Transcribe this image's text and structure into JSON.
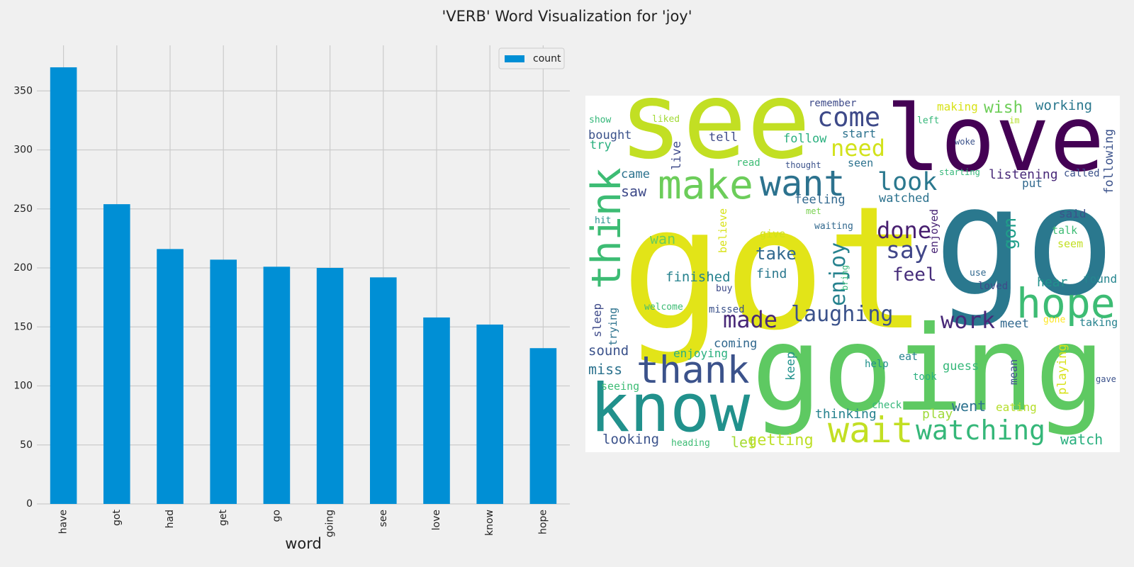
{
  "title": "'VERB' Word Visualization for 'joy'",
  "chart_data": [
    {
      "type": "bar",
      "x_label": "word",
      "categories": [
        "have",
        "got",
        "had",
        "get",
        "go",
        "going",
        "see",
        "love",
        "know",
        "hope"
      ],
      "series": [
        {
          "name": "count",
          "color": "#008fd5",
          "values": [
            370,
            254,
            216,
            207,
            201,
            200,
            192,
            158,
            152,
            132
          ]
        }
      ],
      "ylim": [
        0,
        388.6
      ],
      "yticks": [
        0,
        50,
        100,
        150,
        200,
        250,
        300,
        350
      ],
      "grid": true,
      "legend": "upper right"
    },
    {
      "type": "wordcloud",
      "background": "#ffffff",
      "words": [
        {
          "text": "go",
          "color": "#2a788e"
        },
        {
          "text": "got",
          "color": "#e2e418"
        },
        {
          "text": "going",
          "color": "#5ec962"
        },
        {
          "text": "see",
          "color": "#c2df23"
        },
        {
          "text": "love",
          "color": "#440154"
        },
        {
          "text": "know",
          "color": "#21918c"
        },
        {
          "text": "thank",
          "color": "#3b528b"
        },
        {
          "text": "wait",
          "color": "#c2df23"
        },
        {
          "text": "watching",
          "color": "#35b779"
        },
        {
          "text": "hope",
          "color": "#3dbc74"
        },
        {
          "text": "think",
          "color": "#3dbc74"
        },
        {
          "text": "make",
          "color": "#6ccd5a"
        },
        {
          "text": "want",
          "color": "#2c728e"
        },
        {
          "text": "come",
          "color": "#3e4a89"
        },
        {
          "text": "need",
          "color": "#d2e21b"
        },
        {
          "text": "look",
          "color": "#2a788e"
        },
        {
          "text": "done",
          "color": "#481f70"
        },
        {
          "text": "say",
          "color": "#404688"
        },
        {
          "text": "feel",
          "color": "#472d7b"
        },
        {
          "text": "laughing",
          "color": "#3b528b"
        },
        {
          "text": "work",
          "color": "#482878"
        },
        {
          "text": "made",
          "color": "#482878"
        },
        {
          "text": "take",
          "color": "#31688e"
        },
        {
          "text": "find",
          "color": "#2a788e"
        },
        {
          "text": "finished",
          "color": "#26828e"
        },
        {
          "text": "wan",
          "color": "#6ccd5a"
        },
        {
          "text": "enjoy",
          "color": "#26828e"
        },
        {
          "text": "gon",
          "color": "#1f9e89"
        },
        {
          "text": "enjoyed",
          "color": "#482475"
        },
        {
          "text": "said",
          "color": "#3b528b"
        },
        {
          "text": "talk",
          "color": "#3dbc74"
        },
        {
          "text": "seem",
          "color": "#c2df23"
        },
        {
          "text": "hear",
          "color": "#21918c"
        },
        {
          "text": "found",
          "color": "#25858e"
        },
        {
          "text": "meet",
          "color": "#31688e"
        },
        {
          "text": "gone",
          "color": "#fde725"
        },
        {
          "text": "taking",
          "color": "#26828e"
        },
        {
          "text": "wish",
          "color": "#6ece58"
        },
        {
          "text": "working",
          "color": "#2a788e"
        },
        {
          "text": "making",
          "color": "#d8e219"
        },
        {
          "text": "remember",
          "color": "#3e4a89"
        },
        {
          "text": "left",
          "color": "#35b779"
        },
        {
          "text": "im",
          "color": "#b5de2b"
        },
        {
          "text": "following",
          "color": "#3b528b"
        },
        {
          "text": "called",
          "color": "#3b528b"
        },
        {
          "text": "listening",
          "color": "#482878"
        },
        {
          "text": "starting",
          "color": "#35b779"
        },
        {
          "text": "woke",
          "color": "#3b528b"
        },
        {
          "text": "put",
          "color": "#31688e"
        },
        {
          "text": "tell",
          "color": "#3e4a89"
        },
        {
          "text": "follow",
          "color": "#2ab07f"
        },
        {
          "text": "start",
          "color": "#2c728e"
        },
        {
          "text": "seen",
          "color": "#2c728e"
        },
        {
          "text": "read",
          "color": "#3dbc74"
        },
        {
          "text": "thought",
          "color": "#3b528b"
        },
        {
          "text": "live",
          "color": "#3e4a89"
        },
        {
          "text": "show",
          "color": "#35b779"
        },
        {
          "text": "liked",
          "color": "#a2da37"
        },
        {
          "text": "bought",
          "color": "#3b528b"
        },
        {
          "text": "try",
          "color": "#2ab07f"
        },
        {
          "text": "came",
          "color": "#2c728e"
        },
        {
          "text": "saw",
          "color": "#3e4a89"
        },
        {
          "text": "feeling",
          "color": "#31688e"
        },
        {
          "text": "watched",
          "color": "#2c728e"
        },
        {
          "text": "hit",
          "color": "#21918c"
        },
        {
          "text": "met",
          "color": "#7ad151"
        },
        {
          "text": "waiting",
          "color": "#31688e"
        },
        {
          "text": "believe",
          "color": "#d8e219"
        },
        {
          "text": "give",
          "color": "#d2e21b"
        },
        {
          "text": "bring",
          "color": "#35b779"
        },
        {
          "text": "use",
          "color": "#31688e"
        },
        {
          "text": "loved",
          "color": "#3e4a89"
        },
        {
          "text": "buy",
          "color": "#3e4a89"
        },
        {
          "text": "welcome",
          "color": "#3dbc74"
        },
        {
          "text": "missed",
          "color": "#3b528b"
        },
        {
          "text": "sleep",
          "color": "#3e4a89"
        },
        {
          "text": "trying",
          "color": "#2c728e"
        },
        {
          "text": "coming",
          "color": "#31688e"
        },
        {
          "text": "sound",
          "color": "#3b528b"
        },
        {
          "text": "enjoying",
          "color": "#2ab07f"
        },
        {
          "text": "keep",
          "color": "#21918c"
        },
        {
          "text": "eat",
          "color": "#26828e"
        },
        {
          "text": "help",
          "color": "#21918c"
        },
        {
          "text": "guess",
          "color": "#35b779"
        },
        {
          "text": "mean",
          "color": "#3b528b"
        },
        {
          "text": "playing",
          "color": "#d8e219"
        },
        {
          "text": "gave",
          "color": "#3b528b"
        },
        {
          "text": "miss",
          "color": "#2c728e"
        },
        {
          "text": "seeing",
          "color": "#3dbc74"
        },
        {
          "text": "took",
          "color": "#2ab07f"
        },
        {
          "text": "check",
          "color": "#35b779"
        },
        {
          "text": "went",
          "color": "#2c728e"
        },
        {
          "text": "eating",
          "color": "#b5de2b"
        },
        {
          "text": "thinking",
          "color": "#26828e"
        },
        {
          "text": "play",
          "color": "#9fda3a"
        },
        {
          "text": "looking",
          "color": "#3b528b"
        },
        {
          "text": "heading",
          "color": "#3dbc74"
        },
        {
          "text": "let",
          "color": "#a5db36"
        },
        {
          "text": "getting",
          "color": "#bddf26"
        },
        {
          "text": "watch",
          "color": "#2ab07f"
        }
      ]
    }
  ]
}
